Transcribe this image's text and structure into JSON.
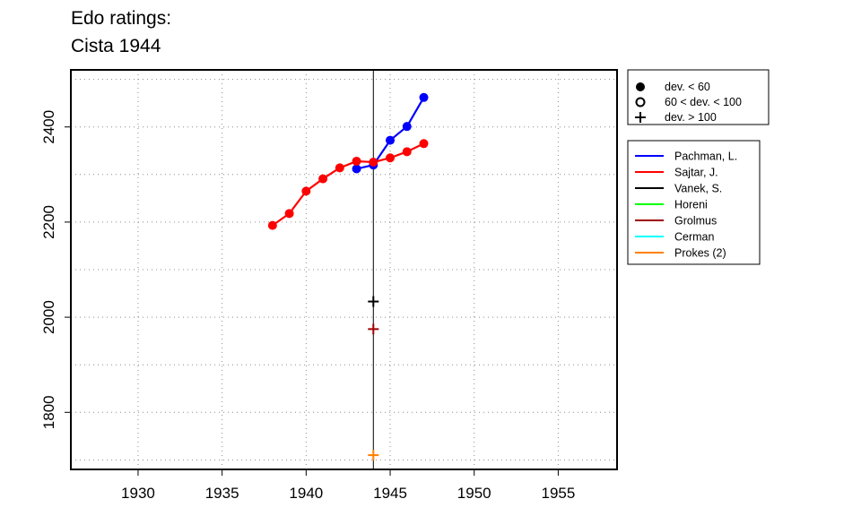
{
  "chart_data": {
    "type": "line",
    "title_lines": [
      "Edo ratings:",
      "Cista 1944"
    ],
    "xlabel": "",
    "ylabel": "",
    "xlim": [
      1926,
      1958.5
    ],
    "ylim": [
      1680,
      2520
    ],
    "x_ticks": [
      1930,
      1935,
      1940,
      1945,
      1950,
      1955
    ],
    "y_ticks": [
      1800,
      2000,
      2200,
      2400
    ],
    "grid": true,
    "event_year": 1944,
    "symbol_legend": [
      {
        "marker": "filled-circle",
        "label": "dev. < 60"
      },
      {
        "marker": "open-circle",
        "label": "60 < dev. < 100"
      },
      {
        "marker": "plus",
        "label": "dev. > 100"
      }
    ],
    "legend_position": "right",
    "series": [
      {
        "name": "Pachman, L.",
        "color": "#0000ff",
        "points": [
          {
            "x": 1943,
            "y": 2312,
            "m": "filled-circle"
          },
          {
            "x": 1944,
            "y": 2320,
            "m": "filled-circle"
          },
          {
            "x": 1945,
            "y": 2372,
            "m": "filled-circle"
          },
          {
            "x": 1946,
            "y": 2401,
            "m": "filled-circle"
          },
          {
            "x": 1947,
            "y": 2462,
            "m": "filled-circle"
          }
        ]
      },
      {
        "name": "Sajtar, J.",
        "color": "#ff0000",
        "points": [
          {
            "x": 1938,
            "y": 2193,
            "m": "filled-circle"
          },
          {
            "x": 1939,
            "y": 2218,
            "m": "filled-circle"
          },
          {
            "x": 1940,
            "y": 2265,
            "m": "filled-circle"
          },
          {
            "x": 1941,
            "y": 2291,
            "m": "filled-circle"
          },
          {
            "x": 1942,
            "y": 2314,
            "m": "filled-circle"
          },
          {
            "x": 1943,
            "y": 2328,
            "m": "filled-circle"
          },
          {
            "x": 1944,
            "y": 2326,
            "m": "filled-circle"
          },
          {
            "x": 1945,
            "y": 2335,
            "m": "filled-circle"
          },
          {
            "x": 1946,
            "y": 2348,
            "m": "filled-circle"
          },
          {
            "x": 1947,
            "y": 2365,
            "m": "filled-circle"
          }
        ]
      },
      {
        "name": "Vanek, S.",
        "color": "#000000",
        "points": [
          {
            "x": 1944,
            "y": 2033,
            "m": "plus"
          }
        ]
      },
      {
        "name": "Horeni",
        "color": "#00ff00",
        "points": []
      },
      {
        "name": "Grolmus",
        "color": "#a00000",
        "points": [
          {
            "x": 1944,
            "y": 1975,
            "m": "plus"
          }
        ]
      },
      {
        "name": "Cerman",
        "color": "#00ffff",
        "points": []
      },
      {
        "name": "Prokes (2)",
        "color": "#ff8000",
        "points": [
          {
            "x": 1944,
            "y": 1710,
            "m": "plus"
          }
        ]
      }
    ]
  }
}
